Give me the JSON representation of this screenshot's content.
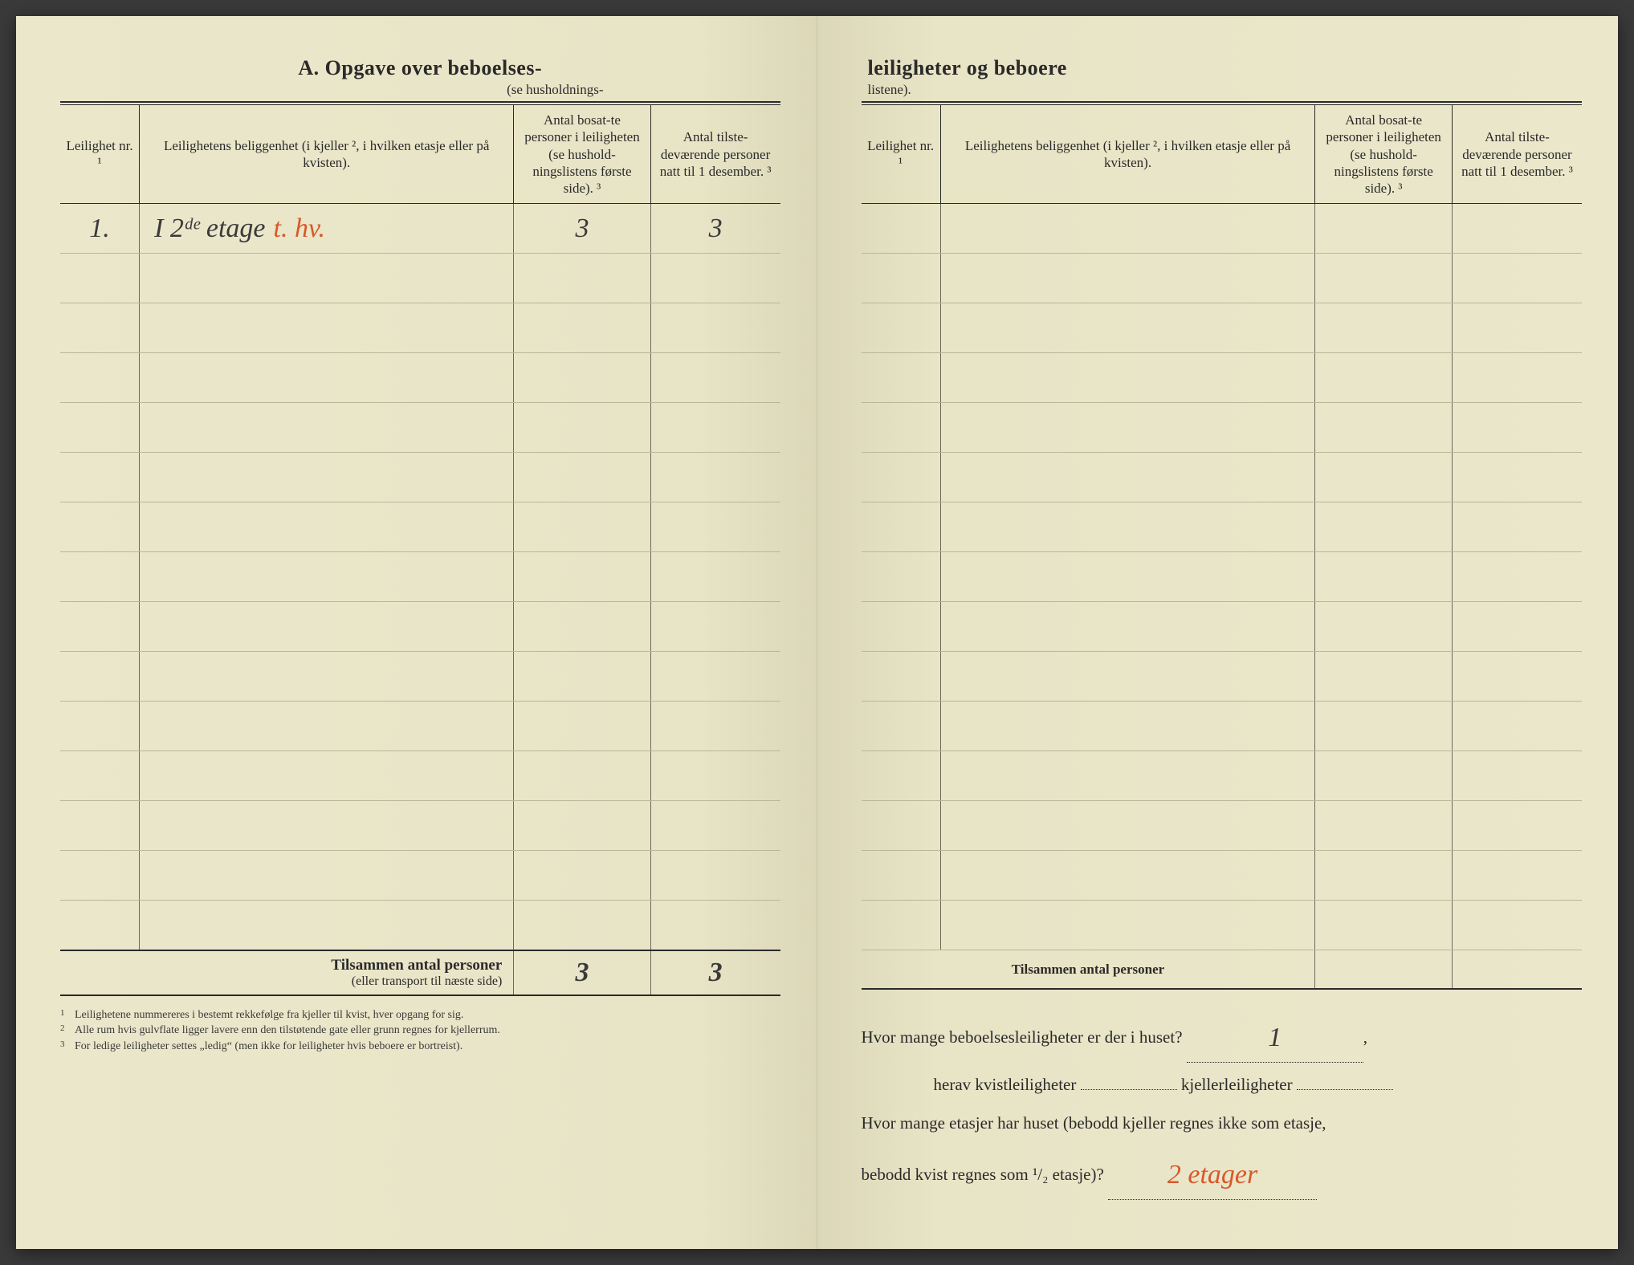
{
  "colors": {
    "paper": "#e8e4c8",
    "ink": "#2a2a2a",
    "red_pencil": "#d8582a",
    "rule_light": "#bab69a"
  },
  "left": {
    "title": "A.  Opgave over beboelses-",
    "subtitle": "(se husholdnings-",
    "columns": {
      "nr": "Leilighet nr. ¹",
      "loc": "Leilighetens beliggenhet (i kjeller ², i hvilken etasje eller på kvisten).",
      "p1": "Antal bosat-te personer i leiligheten (se hushold-ningslistens første side). ³",
      "p2": "Antal tilste-deværende personer natt til 1 desember. ³"
    },
    "rows": [
      {
        "nr": "1.",
        "loc": "I 2ᵈᵉ etage",
        "loc_red": "t. hv.",
        "p1": "3",
        "p2": "3"
      },
      {},
      {},
      {},
      {},
      {},
      {},
      {},
      {},
      {},
      {},
      {},
      {},
      {},
      {}
    ],
    "totals_label": "Tilsammen antal personer",
    "totals_sub": "(eller transport til næste side)",
    "totals_p1": "3",
    "totals_p2": "3",
    "footnotes": [
      "Leilighetene nummereres i bestemt rekkefølge fra kjeller til kvist, hver opgang for sig.",
      "Alle rum hvis gulvflate ligger lavere enn den tilstøtende gate eller grunn regnes for kjellerrum.",
      "For ledige leiligheter settes „ledig“ (men ikke for leiligheter hvis beboere er bortreist)."
    ]
  },
  "right": {
    "title": "leiligheter og beboere",
    "subtitle": "listene).",
    "columns": {
      "nr": "Leilighet nr. ¹",
      "loc": "Leilighetens beliggenhet (i kjeller ², i hvilken etasje eller på kvisten).",
      "p1": "Antal bosat-te personer i leiligheten (se hushold-ningslistens første side). ³",
      "p2": "Antal tilste-deværende personer natt til 1 desember. ³"
    },
    "row_count": 15,
    "totals_label": "Tilsammen antal personer",
    "q1_a": "Hvor mange beboelsesleiligheter er der i huset?",
    "q1_ans": "1",
    "q2_a": "herav kvistleiligheter",
    "q2_b": "kjellerleiligheter",
    "q3_a": "Hvor mange etasjer har huset (bebodd kjeller regnes ikke som etasje,",
    "q3_b": "bebodd kvist regnes som ¹/₂ etasje)?",
    "q3_ans": "2 etager"
  }
}
